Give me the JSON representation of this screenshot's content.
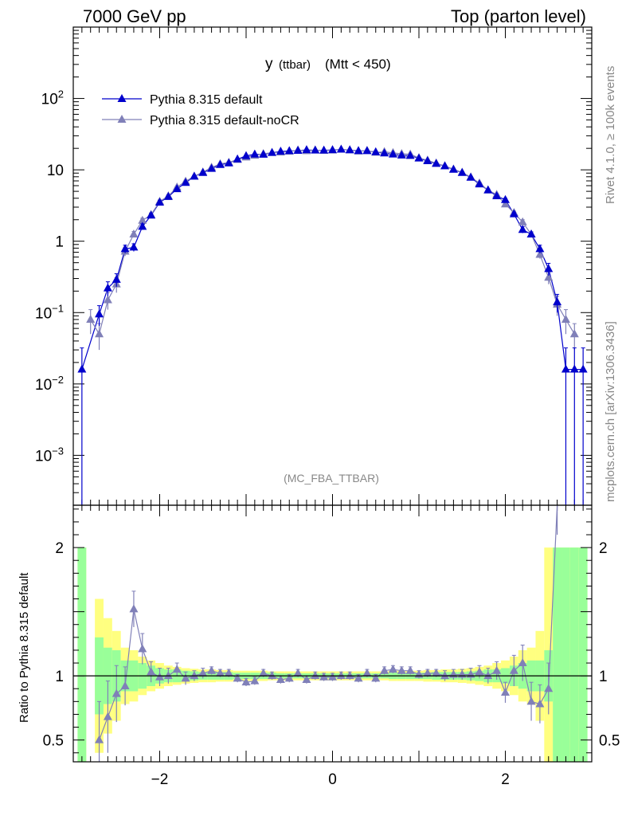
{
  "header": {
    "left": "7000 GeV pp",
    "right": "Top (parton level)"
  },
  "side_labels": {
    "rivet": "Rivet 4.1.0, ≥ 100k events",
    "mcplots": "mcplots.cern.ch [arXiv:1306.3436]"
  },
  "colors": {
    "default": "#0000cc",
    "nocr": "#8080b8",
    "band_inner": "#99ff99",
    "band_outer": "#ffff80"
  },
  "chart_data": [
    {
      "type": "line",
      "title": "y (ttbar) (Mtt < 450)",
      "title_main": "y",
      "title_small": "(ttbar)",
      "title_rest": "(Mtt < 450)",
      "analysis_tag": "(MC_FBA_TTBAR)",
      "yscale": "log",
      "xlim": [
        -3.0,
        3.0
      ],
      "ylim": [
        0.0002,
        1000
      ],
      "y_ticks": [
        {
          "value": 0.001,
          "base": "10",
          "exp": "−3"
        },
        {
          "value": 0.01,
          "base": "10",
          "exp": "−2"
        },
        {
          "value": 0.1,
          "base": "10",
          "exp": "−1"
        },
        {
          "value": 1,
          "base": "1",
          "exp": ""
        },
        {
          "value": 10,
          "base": "10",
          "exp": ""
        },
        {
          "value": 100,
          "base": "10",
          "exp": "2"
        }
      ],
      "legend": [
        {
          "name": "Pythia 8.315 default",
          "series": 0
        },
        {
          "name": "Pythia 8.315 default-noCR",
          "series": 1
        }
      ],
      "x": [
        -2.9,
        -2.8,
        -2.7,
        -2.6,
        -2.5,
        -2.4,
        -2.3,
        -2.2,
        -2.1,
        -2.0,
        -1.9,
        -1.8,
        -1.7,
        -1.6,
        -1.5,
        -1.4,
        -1.3,
        -1.2,
        -1.1,
        -1.0,
        -0.9,
        -0.8,
        -0.7,
        -0.6,
        -0.5,
        -0.4,
        -0.3,
        -0.2,
        -0.1,
        0.0,
        0.1,
        0.2,
        0.3,
        0.4,
        0.5,
        0.6,
        0.7,
        0.8,
        0.9,
        1.0,
        1.1,
        1.2,
        1.3,
        1.4,
        1.5,
        1.6,
        1.7,
        1.8,
        1.9,
        2.0,
        2.1,
        2.2,
        2.3,
        2.4,
        2.5,
        2.6,
        2.7,
        2.8,
        2.9
      ],
      "series": [
        {
          "name": "Pythia 8.315 default",
          "values": [
            0.016,
            null,
            0.095,
            0.22,
            0.29,
            0.78,
            0.82,
            1.6,
            2.3,
            3.5,
            4.2,
            5.4,
            6.6,
            8.1,
            9.1,
            10.4,
            11.8,
            12.4,
            14.1,
            15.7,
            16.5,
            16.4,
            17.4,
            18.1,
            18.4,
            18.6,
            19.0,
            18.8,
            18.8,
            19.0,
            19.3,
            18.9,
            18.5,
            18.4,
            17.8,
            17.1,
            16.5,
            16.0,
            15.8,
            14.5,
            13.3,
            12.2,
            11.3,
            10.1,
            9.1,
            7.8,
            6.3,
            5.2,
            4.3,
            3.8,
            2.4,
            1.45,
            1.25,
            0.78,
            0.41,
            0.14,
            0.016,
            0.016,
            0.016
          ],
          "errors": [
            0.016,
            null,
            0.03,
            0.05,
            0.06,
            0.1,
            0.1,
            0.15,
            0.15,
            0.2,
            0.2,
            0.2,
            0.25,
            0.25,
            0.3,
            0.3,
            0.3,
            0.3,
            0.3,
            0.3,
            0.3,
            0.3,
            0.3,
            0.3,
            0.3,
            0.3,
            0.3,
            0.3,
            0.3,
            0.3,
            0.3,
            0.3,
            0.3,
            0.3,
            0.3,
            0.3,
            0.3,
            0.3,
            0.3,
            0.3,
            0.3,
            0.3,
            0.3,
            0.3,
            0.3,
            0.25,
            0.25,
            0.2,
            0.2,
            0.2,
            0.15,
            0.15,
            0.1,
            0.1,
            0.08,
            0.04,
            0.016,
            0.016,
            0.016
          ]
        },
        {
          "name": "Pythia 8.315 default-noCR",
          "values": [
            null,
            0.08,
            0.05,
            0.15,
            0.25,
            0.72,
            1.25,
            1.95,
            2.35,
            3.6,
            4.3,
            5.7,
            6.9,
            8.1,
            9.3,
            10.8,
            12.1,
            12.7,
            13.9,
            15.0,
            15.9,
            16.8,
            17.4,
            17.6,
            18.1,
            18.9,
            18.4,
            18.9,
            18.6,
            18.8,
            19.3,
            19.0,
            18.2,
            18.6,
            17.5,
            17.9,
            17.3,
            16.8,
            16.5,
            14.7,
            13.6,
            12.4,
            11.3,
            10.2,
            9.2,
            7.9,
            6.5,
            5.2,
            4.5,
            3.3,
            2.5,
            1.85,
            1.25,
            0.65,
            0.31,
            0.13,
            0.08,
            0.05,
            null
          ],
          "errors": [
            null,
            0.03,
            0.02,
            0.04,
            0.06,
            0.1,
            0.12,
            0.15,
            0.15,
            0.2,
            0.2,
            0.2,
            0.25,
            0.25,
            0.3,
            0.3,
            0.3,
            0.3,
            0.3,
            0.3,
            0.3,
            0.3,
            0.3,
            0.3,
            0.3,
            0.3,
            0.3,
            0.3,
            0.3,
            0.3,
            0.3,
            0.3,
            0.3,
            0.3,
            0.3,
            0.3,
            0.3,
            0.3,
            0.3,
            0.3,
            0.3,
            0.3,
            0.3,
            0.3,
            0.3,
            0.25,
            0.25,
            0.2,
            0.2,
            0.2,
            0.15,
            0.15,
            0.1,
            0.08,
            0.06,
            0.04,
            0.03,
            0.02,
            null
          ]
        }
      ]
    },
    {
      "type": "line",
      "title": "Ratio to Pythia 8.315 default",
      "ylabel": "Ratio to Pythia 8.315 default",
      "xlabel": "",
      "xlim": [
        -3.0,
        3.0
      ],
      "ylim": [
        0.33,
        2.33
      ],
      "x_ticks": [
        {
          "value": -2,
          "label": "−2"
        },
        {
          "value": 0,
          "label": "0"
        },
        {
          "value": 2,
          "label": "2"
        }
      ],
      "y_ticks": [
        {
          "value": 0.5,
          "label": "0.5"
        },
        {
          "value": 1,
          "label": "1"
        },
        {
          "value": 2,
          "label": "2"
        }
      ],
      "reference_line": 1,
      "bands": {
        "inner": [
          1.0,
          null,
          0.3,
          0.22,
          0.2,
          0.12,
          0.12,
          0.1,
          0.08,
          0.06,
          0.05,
          0.05,
          0.04,
          0.035,
          0.03,
          0.03,
          0.03,
          0.03,
          0.025,
          0.025,
          0.025,
          0.025,
          0.025,
          0.02,
          0.02,
          0.02,
          0.02,
          0.02,
          0.02,
          0.02,
          0.02,
          0.02,
          0.02,
          0.02,
          0.02,
          0.02,
          0.025,
          0.025,
          0.025,
          0.025,
          0.025,
          0.03,
          0.03,
          0.03,
          0.03,
          0.035,
          0.04,
          0.05,
          0.05,
          0.06,
          0.08,
          0.1,
          0.12,
          0.12,
          0.2,
          1.0,
          1.0,
          1.0,
          1.0
        ],
        "outer": [
          1.0,
          null,
          0.6,
          0.45,
          0.35,
          0.22,
          0.2,
          0.15,
          0.12,
          0.1,
          0.08,
          0.07,
          0.06,
          0.055,
          0.05,
          0.05,
          0.045,
          0.045,
          0.04,
          0.04,
          0.04,
          0.04,
          0.035,
          0.035,
          0.035,
          0.035,
          0.035,
          0.035,
          0.035,
          0.035,
          0.035,
          0.035,
          0.035,
          0.035,
          0.035,
          0.035,
          0.04,
          0.04,
          0.04,
          0.04,
          0.045,
          0.045,
          0.05,
          0.05,
          0.055,
          0.06,
          0.07,
          0.08,
          0.1,
          0.12,
          0.15,
          0.2,
          0.22,
          0.35,
          1.0,
          1.0,
          1.0,
          1.0,
          1.0
        ]
      },
      "series": [
        {
          "name": "Pythia 8.315 default-noCR",
          "values": [
            null,
            null,
            0.5,
            0.68,
            0.86,
            0.92,
            1.52,
            1.21,
            1.03,
            0.99,
            1.0,
            1.05,
            0.98,
            1.0,
            1.02,
            1.04,
            1.02,
            1.02,
            0.98,
            0.95,
            0.96,
            1.02,
            1.0,
            0.97,
            0.98,
            1.02,
            0.97,
            1.0,
            0.99,
            0.99,
            1.0,
            1.0,
            0.98,
            1.02,
            0.98,
            1.04,
            1.05,
            1.04,
            1.04,
            1.01,
            1.02,
            1.02,
            1.0,
            1.01,
            1.01,
            1.01,
            1.03,
            1.0,
            1.04,
            0.87,
            1.04,
            1.1,
            0.8,
            0.78,
            0.9,
            2.4,
            null,
            null,
            null
          ],
          "errors": [
            null,
            null,
            0.3,
            0.28,
            0.22,
            0.15,
            0.14,
            0.12,
            0.08,
            0.07,
            0.06,
            0.05,
            0.05,
            0.04,
            0.04,
            0.03,
            0.03,
            0.03,
            0.03,
            0.03,
            0.03,
            0.03,
            0.03,
            0.03,
            0.03,
            0.03,
            0.03,
            0.03,
            0.03,
            0.03,
            0.03,
            0.03,
            0.03,
            0.03,
            0.03,
            0.03,
            0.03,
            0.03,
            0.03,
            0.03,
            0.03,
            0.03,
            0.04,
            0.04,
            0.04,
            0.05,
            0.05,
            0.06,
            0.07,
            0.08,
            0.12,
            0.14,
            0.15,
            0.15,
            0.2,
            0.3,
            null,
            null,
            null
          ]
        }
      ]
    }
  ]
}
